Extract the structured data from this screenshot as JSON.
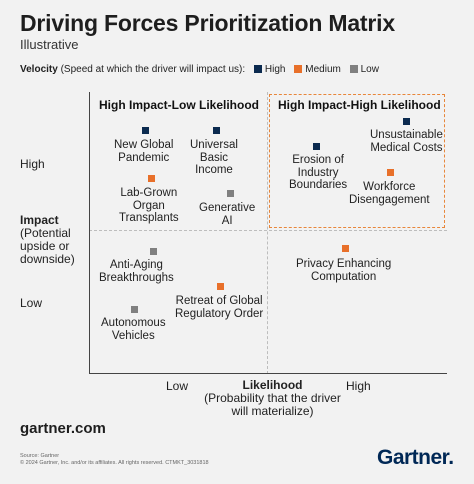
{
  "title": "Driving Forces Prioritization Matrix",
  "subtitle": "Illustrative",
  "legend": {
    "title": "Velocity",
    "description": "(Speed at which the driver will impact us):",
    "items": [
      {
        "label": "High",
        "color": "#0b2a4f"
      },
      {
        "label": "Medium",
        "color": "#e8702a"
      },
      {
        "label": "Low",
        "color": "#808080"
      }
    ]
  },
  "colors": {
    "high": "#0b2a4f",
    "medium": "#e8702a",
    "low": "#808080",
    "highlight_border": "#e8863a",
    "brand": "#002856"
  },
  "quadrants": {
    "top_left": "High Impact-Low Likelihood",
    "top_right": "High Impact-High Likelihood"
  },
  "y_axis": {
    "title": "Impact",
    "subtitle": "(Potential upside or downside)",
    "high": "High",
    "low": "Low"
  },
  "x_axis": {
    "title": "Likelihood",
    "subtitle": "(Probability that the driver will materialize)",
    "low": "Low",
    "high": "High"
  },
  "drivers": [
    {
      "label": "New Global\nPandemic",
      "velocity": "High"
    },
    {
      "label": "Universal\nBasic\nIncome",
      "velocity": "High"
    },
    {
      "label": "Lab-Grown\nOrgan\nTransplants",
      "velocity": "Medium"
    },
    {
      "label": "Generative\nAI",
      "velocity": "Low"
    },
    {
      "label": "Erosion of\nIndustry\nBoundaries",
      "velocity": "High"
    },
    {
      "label": "Unsustainable\nMedical Costs",
      "velocity": "High"
    },
    {
      "label": "Workforce\nDisengagement",
      "velocity": "Medium"
    },
    {
      "label": "Anti-Aging\nBreakthroughs",
      "velocity": "Low"
    },
    {
      "label": "Retreat of Global\nRegulatory Order",
      "velocity": "Medium"
    },
    {
      "label": "Autonomous\nVehicles",
      "velocity": "Low"
    },
    {
      "label": "Privacy Enhancing\nComputation",
      "velocity": "Medium"
    }
  ],
  "footer": {
    "site": "gartner.com",
    "source": "Source: Gartner\n© 2024 Gartner, Inc. and/or its affiliates. All rights reserved. CTMKT_3031818",
    "brand": "Gartner."
  }
}
